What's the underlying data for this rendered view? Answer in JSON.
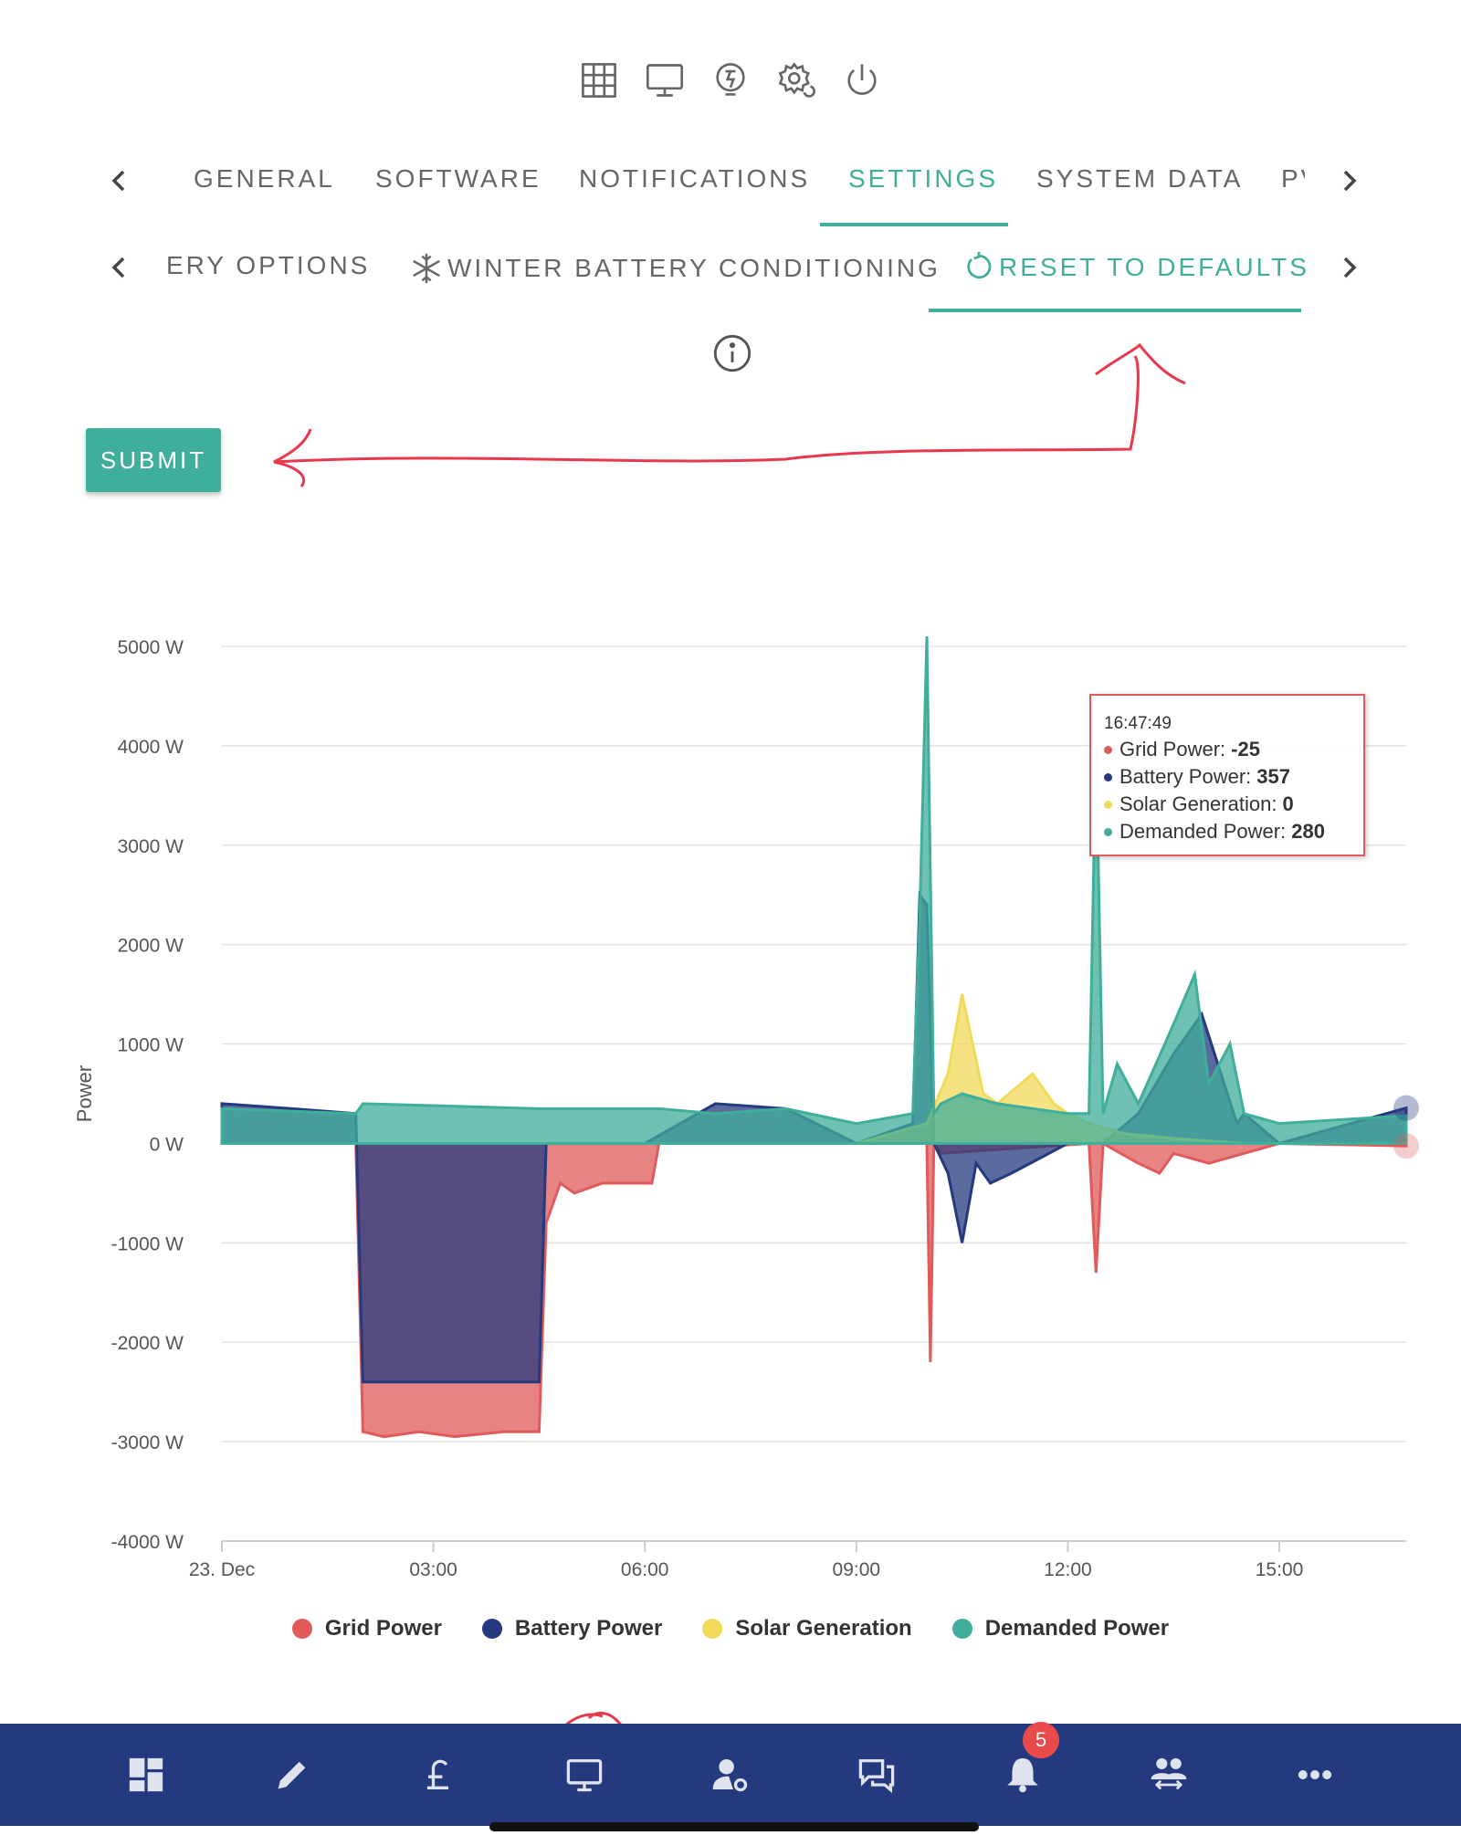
{
  "top_icons": [
    "grid-icon",
    "monitor-icon",
    "power-flow-icon",
    "gear-icon",
    "power-icon"
  ],
  "main_tabs": {
    "items": [
      "GENERAL",
      "SOFTWARE",
      "NOTIFICATIONS",
      "SETTINGS",
      "SYSTEM DATA",
      "PV"
    ],
    "active": "SETTINGS"
  },
  "sub_tabs": {
    "items": [
      "ERY OPTIONS",
      "WINTER BATTERY CONDITIONING",
      "RESET TO DEFAULTS"
    ],
    "active": "RESET TO DEFAULTS"
  },
  "submit_label": "SUBMIT",
  "tooltip": {
    "time": "16:47:49",
    "rows": [
      {
        "label": "Grid Power:",
        "value": "-25",
        "color": "#e05a5a"
      },
      {
        "label": "Battery Power:",
        "value": "357",
        "color": "#253a7e"
      },
      {
        "label": "Solar Generation:",
        "value": "0",
        "color": "#f1d95a"
      },
      {
        "label": "Demanded Power:",
        "value": "280",
        "color": "#3fae9a"
      }
    ]
  },
  "chart_data": {
    "type": "area",
    "ylabel": "Power",
    "ylim": [
      -4000,
      5000
    ],
    "yticks": [
      "5000 W",
      "4000 W",
      "3000 W",
      "2000 W",
      "1000 W",
      "0 W",
      "-1000 W",
      "-2000 W",
      "-3000 W",
      "-4000 W"
    ],
    "ytick_values": [
      5000,
      4000,
      3000,
      2000,
      1000,
      0,
      -1000,
      -2000,
      -3000,
      -4000
    ],
    "xlim_hours": [
      0,
      16.8
    ],
    "xticks": [
      "23. Dec",
      "03:00",
      "06:00",
      "09:00",
      "12:00",
      "15:00"
    ],
    "xtick_hours": [
      0,
      3,
      6,
      9,
      12,
      15
    ],
    "grid": true,
    "legend_position": "bottom",
    "series": [
      {
        "name": "Grid Power",
        "color": "#e05a5a",
        "x": [
          0,
          1.9,
          2.0,
          2.3,
          2.8,
          3.3,
          4.0,
          4.5,
          4.6,
          4.8,
          5.0,
          5.4,
          5.8,
          6.1,
          6.2,
          9.0,
          10.0,
          10.05,
          10.1,
          10.2,
          12.3,
          12.4,
          12.5,
          13.0,
          13.3,
          13.5,
          14.0,
          15.0,
          16.8
        ],
        "y": [
          0,
          0,
          -2900,
          -2950,
          -2900,
          -2950,
          -2900,
          -2900,
          -800,
          -400,
          -500,
          -400,
          -400,
          -400,
          0,
          0,
          0,
          -2200,
          0,
          -100,
          0,
          -1300,
          0,
          -200,
          -300,
          -100,
          -200,
          0,
          -25
        ]
      },
      {
        "name": "Battery Power",
        "color": "#253a7e",
        "x": [
          0,
          1.0,
          1.9,
          2.0,
          4.5,
          4.6,
          6.0,
          7.0,
          8.0,
          9.0,
          9.8,
          9.9,
          10.0,
          10.1,
          10.3,
          10.5,
          10.7,
          10.9,
          11.2,
          12.0,
          12.5,
          13.0,
          13.5,
          13.9,
          14.4,
          14.5,
          15.0,
          16.8
        ],
        "y": [
          400,
          350,
          300,
          -2400,
          -2400,
          0,
          0,
          400,
          350,
          0,
          200,
          2500,
          2400,
          0,
          -300,
          -1000,
          -200,
          -400,
          -300,
          0,
          0,
          300,
          900,
          1300,
          200,
          300,
          0,
          357
        ]
      },
      {
        "name": "Solar Generation",
        "color": "#f1d95a",
        "x": [
          0,
          9.0,
          9.5,
          10.0,
          10.3,
          10.5,
          10.8,
          11.0,
          11.5,
          11.8,
          12.0,
          12.3,
          12.8,
          13.5,
          14.5,
          16.8
        ],
        "y": [
          0,
          0,
          100,
          200,
          700,
          1500,
          500,
          400,
          700,
          400,
          300,
          200,
          100,
          50,
          0,
          0
        ]
      },
      {
        "name": "Demanded Power",
        "color": "#3fae9a",
        "x": [
          0,
          1.9,
          2.0,
          4.5,
          4.8,
          6.0,
          6.2,
          7.0,
          8.0,
          9.0,
          9.8,
          9.9,
          10.0,
          10.1,
          10.2,
          10.5,
          11.0,
          12.0,
          12.3,
          12.4,
          12.5,
          12.7,
          13.0,
          13.5,
          13.8,
          14.0,
          14.3,
          14.5,
          15.0,
          16.8
        ],
        "y": [
          350,
          300,
          400,
          350,
          350,
          350,
          350,
          300,
          350,
          200,
          300,
          2300,
          5100,
          300,
          400,
          500,
          400,
          300,
          300,
          4000,
          300,
          800,
          400,
          1200,
          1700,
          600,
          1000,
          300,
          200,
          280
        ]
      }
    ]
  },
  "bottom_nav": {
    "items": [
      "dashboard-icon",
      "edit-icon",
      "pound-icon",
      "monitor-icon",
      "user-settings-icon",
      "chat-icon",
      "bell-icon",
      "users-swap-icon",
      "more-icon"
    ],
    "badge": "5"
  }
}
